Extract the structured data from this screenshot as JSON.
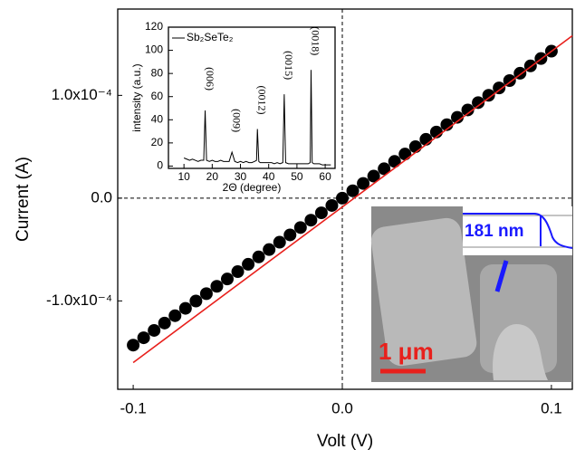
{
  "chart_data": [
    {
      "type": "scatter",
      "xlabel": "Volt (V)",
      "ylabel": "Current (A)",
      "xlim": [
        -0.1074,
        0.11
      ],
      "ylim": [
        -0.000186,
        0.000184
      ],
      "xticks": [
        {
          "value": -0.1,
          "label": "-0.1"
        },
        {
          "value": 0,
          "label": "0.0"
        },
        {
          "value": 0.1,
          "label": "0.1"
        }
      ],
      "yticks": [
        {
          "value": -0.0001,
          "label": "-1.0x10⁻⁴"
        },
        {
          "value": 0,
          "label": "0.0"
        },
        {
          "value": 0.0001,
          "label": "1.0x10⁻⁴"
        }
      ],
      "zero_lines": true,
      "series": [
        {
          "style": "markers",
          "color": "#000000",
          "x": [
            -0.1,
            -0.095,
            -0.09,
            -0.085,
            -0.08,
            -0.075,
            -0.07,
            -0.065,
            -0.06,
            -0.055,
            -0.05,
            -0.045,
            -0.04,
            -0.035,
            -0.03,
            -0.025,
            -0.02,
            -0.015,
            -0.01,
            -0.005,
            0,
            0.005,
            0.01,
            0.015,
            0.02,
            0.025,
            0.03,
            0.035,
            0.04,
            0.045,
            0.05,
            0.055,
            0.06,
            0.065,
            0.07,
            0.075,
            0.08,
            0.085,
            0.09,
            0.095,
            0.1
          ],
          "values": [
            -0.000143,
            -0.00013585,
            -0.0001287,
            -0.00012155,
            -0.0001144,
            -0.00010725,
            -0.0001001,
            -9.295e-05,
            -8.58e-05,
            -7.865e-05,
            -7.15e-05,
            -6.435e-05,
            -5.72e-05,
            -5.005e-05,
            -4.29e-05,
            -3.575e-05,
            -2.86e-05,
            -2.145e-05,
            -1.43e-05,
            -7.15e-06,
            0,
            7.15e-06,
            1.43e-05,
            2.145e-05,
            2.86e-05,
            3.575e-05,
            4.29e-05,
            5.005e-05,
            5.72e-05,
            6.435e-05,
            7.15e-05,
            7.865e-05,
            8.58e-05,
            9.295e-05,
            0.0001001,
            0.00010725,
            0.0001144,
            0.00012155,
            0.0001287,
            0.00013585,
            0.000143
          ]
        },
        {
          "style": "line",
          "color": "#e8201c",
          "x": [
            -0.1,
            0.11
          ],
          "values": [
            -0.00016,
            0.000158
          ]
        }
      ],
      "annotations": [
        "181 nm",
        "1 μm"
      ]
    },
    {
      "type": "line",
      "xlabel": "2Θ (degree)",
      "ylabel": "intensity (a.u.)",
      "xlim": [
        4.5,
        63.5
      ],
      "ylim": [
        -2,
        120
      ],
      "xticks": [
        10,
        20,
        30,
        40,
        50,
        60
      ],
      "yticks": [
        0,
        20,
        40,
        60,
        80,
        100,
        120
      ],
      "series": [
        {
          "name": "Sb₂SeTe₂",
          "color": "#000000",
          "x": [
            10,
            11,
            12,
            13,
            14,
            15,
            16,
            17,
            17.5,
            18,
            19,
            20,
            21,
            22,
            23,
            24,
            25,
            26,
            27,
            28,
            29,
            30,
            31,
            32,
            33,
            34,
            35,
            35.7,
            36,
            36.5,
            37,
            38,
            39,
            40,
            41,
            42,
            43,
            44,
            45,
            45.5,
            46,
            47,
            48,
            49,
            50,
            51,
            52,
            53,
            54,
            54.7,
            55,
            55.4,
            56,
            57,
            58,
            59,
            60,
            61,
            62
          ],
          "values": [
            7,
            6,
            5,
            6,
            5,
            4,
            5,
            5,
            48,
            5,
            4,
            5,
            4,
            4,
            5,
            4,
            4,
            4,
            12,
            4,
            3,
            4,
            3,
            4,
            3,
            3,
            4,
            5,
            32,
            4,
            3,
            3,
            3,
            3,
            3,
            2,
            3,
            2,
            3,
            62,
            3,
            2,
            2,
            2,
            2,
            2,
            2,
            2,
            2,
            3,
            83,
            3,
            2,
            2,
            2,
            1,
            1,
            1,
            1
          ]
        }
      ],
      "peak_labels": [
        "(006)",
        "(009)",
        "(0012)",
        "(0015)",
        "(0018)"
      ]
    }
  ]
}
